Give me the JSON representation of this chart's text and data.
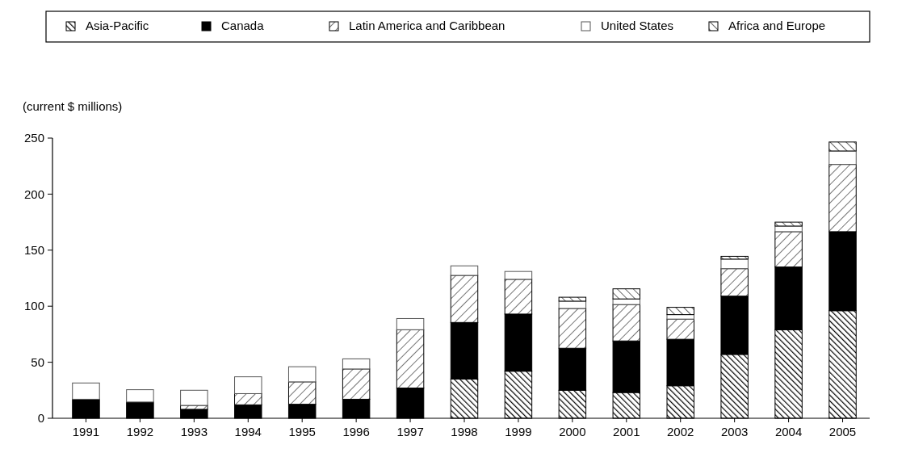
{
  "chart_data": {
    "type": "bar",
    "stacked": true,
    "ylabel": "(current $ millions)",
    "categories": [
      "1991",
      "1992",
      "1993",
      "1994",
      "1995",
      "1996",
      "1997",
      "1998",
      "1999",
      "2000",
      "2001",
      "2002",
      "2003",
      "2004",
      "2005"
    ],
    "series": [
      {
        "name": "Asia-Pacific",
        "color": "#000000",
        "values": [
          0,
          0,
          0,
          0,
          0,
          0,
          0,
          35,
          42,
          25,
          23,
          29,
          57,
          79,
          96
        ]
      },
      {
        "name": "Canada",
        "color": "#000000",
        "values": [
          17,
          14.5,
          8,
          12,
          12.5,
          17,
          27,
          50.5,
          51,
          37.5,
          46,
          41.5,
          52,
          56,
          70.5
        ]
      },
      {
        "name": "Latin America and Caribbean",
        "color": "#000000",
        "values": [
          0,
          0,
          3.5,
          10,
          20,
          27,
          52,
          42,
          31,
          35.5,
          32.5,
          18,
          24.5,
          31.5,
          60
        ]
      },
      {
        "name": "United States",
        "color": "#ffffff",
        "values": [
          14.5,
          11,
          13.5,
          15,
          13.5,
          9,
          10,
          8.5,
          7,
          6.5,
          5,
          4,
          8.5,
          5,
          12
        ]
      },
      {
        "name": "Africa and Europe",
        "color": "#000000",
        "values": [
          0,
          0,
          0,
          0,
          0,
          0,
          0,
          0,
          0,
          3.5,
          9,
          6.5,
          2.5,
          3.5,
          8
        ]
      }
    ],
    "ylim": [
      0,
      250
    ],
    "yticks": [
      0,
      50,
      100,
      150,
      200,
      250
    ],
    "grid": false,
    "legend": "top"
  }
}
